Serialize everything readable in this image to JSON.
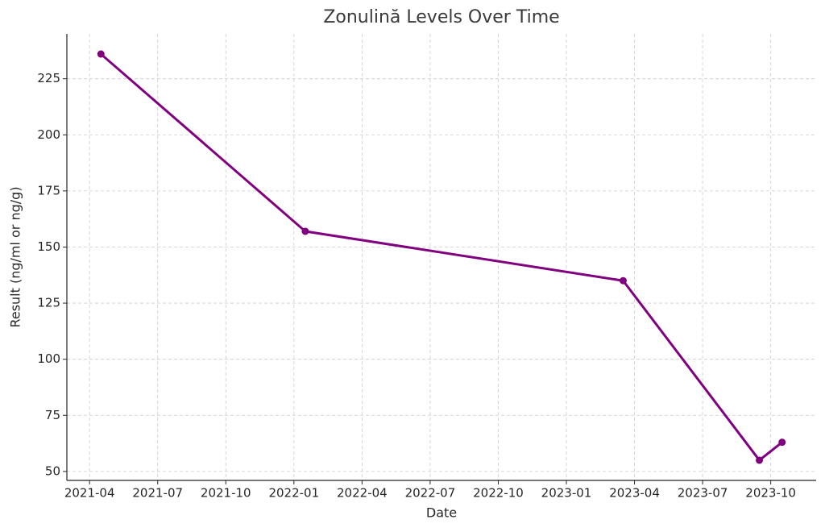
{
  "chart_data": {
    "type": "line",
    "title": "Zonulină Levels Over Time",
    "x_label": "Date",
    "y_label": "Result (ng/ml or ng/g)",
    "x": [
      "2021-04",
      "2022-01",
      "2023-03",
      "2023-09",
      "2023-10"
    ],
    "values": [
      236,
      157,
      135,
      55,
      63
    ],
    "color": "#800080",
    "xlim": [
      "2021-03",
      "2023-12"
    ],
    "xticks": [
      "2021-04",
      "2021-07",
      "2021-10",
      "2022-01",
      "2022-04",
      "2022-07",
      "2022-10",
      "2023-01",
      "2023-04",
      "2023-07",
      "2023-10"
    ],
    "ylim": [
      46,
      245
    ],
    "yticks": [
      50,
      75,
      100,
      125,
      150,
      175,
      200,
      225
    ],
    "grid": true
  }
}
